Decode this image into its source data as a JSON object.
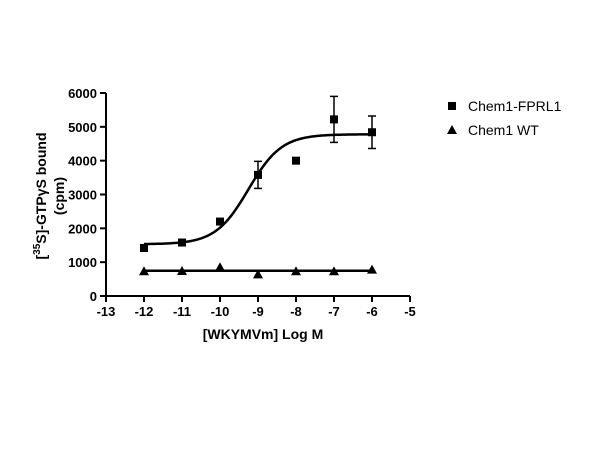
{
  "chart_data": {
    "type": "scatter",
    "title": "",
    "xlabel": "[WKYMVm] Log M",
    "ylabel_parts": {
      "line1_pre": "[",
      "line1_sup": "35",
      "line1_post": "S]-GTPγS bound",
      "line2": "(cpm)"
    },
    "xlim": [
      -13,
      -5
    ],
    "ylim": [
      0,
      6000
    ],
    "x_ticks": [
      -13,
      -12,
      -11,
      -10,
      -9,
      -8,
      -7,
      -6,
      -5
    ],
    "y_ticks": [
      0,
      1000,
      2000,
      3000,
      4000,
      5000,
      6000
    ],
    "grid": false,
    "legend_position": "right",
    "series": [
      {
        "name": "Chem1-FPRL1",
        "marker": "square",
        "color": "#000000",
        "points": [
          {
            "x": -12,
            "y": 1420,
            "err": 90
          },
          {
            "x": -11,
            "y": 1580,
            "err": 0
          },
          {
            "x": -10,
            "y": 2200,
            "err": 0
          },
          {
            "x": -9,
            "y": 3580,
            "err": 400
          },
          {
            "x": -8,
            "y": 4000,
            "err": 0
          },
          {
            "x": -7,
            "y": 5220,
            "err": 680
          },
          {
            "x": -6,
            "y": 4840,
            "err": 480
          }
        ],
        "fit": {
          "model": "sigmoidal",
          "bottom": 1530,
          "top": 4780,
          "log_ec50": -9.25,
          "hill": 1.0
        }
      },
      {
        "name": "Chem1 WT",
        "marker": "triangle",
        "color": "#000000",
        "points": [
          {
            "x": -12,
            "y": 730,
            "err": 0
          },
          {
            "x": -11,
            "y": 740,
            "err": 0
          },
          {
            "x": -10,
            "y": 850,
            "err": 0
          },
          {
            "x": -9,
            "y": 640,
            "err": 0
          },
          {
            "x": -8,
            "y": 730,
            "err": 0
          },
          {
            "x": -7,
            "y": 730,
            "err": 0
          },
          {
            "x": -6,
            "y": 780,
            "err": 0
          }
        ],
        "fit": {
          "model": "flat",
          "value": 745
        }
      }
    ]
  }
}
